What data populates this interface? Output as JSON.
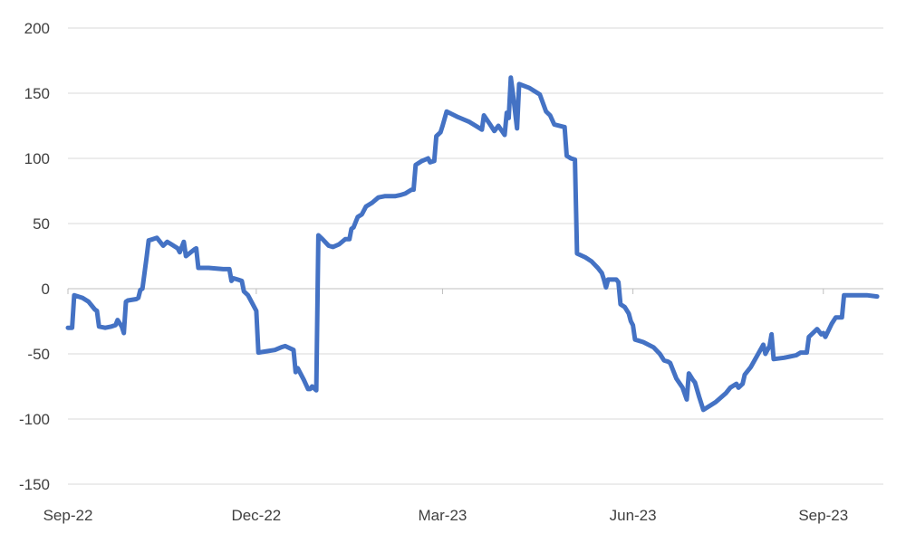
{
  "chart_data": {
    "type": "line",
    "title": "",
    "xlabel": "",
    "ylabel": "",
    "ylim": [
      -150,
      200
    ],
    "y_ticks": [
      200,
      150,
      100,
      50,
      0,
      -50,
      -100,
      -150
    ],
    "y_tick_labels": [
      "200",
      "150",
      "100",
      "50",
      "0",
      "-50",
      "-100",
      "-150"
    ],
    "x_range": [
      "2022-09-01",
      "2023-09-30"
    ],
    "x_ticks": [
      {
        "date": "2022-09-01",
        "label": "Sep-22"
      },
      {
        "date": "2022-12-01",
        "label": "Dec-22"
      },
      {
        "date": "2023-03-01",
        "label": "Mar-23"
      },
      {
        "date": "2023-06-01",
        "label": "Jun-23"
      },
      {
        "date": "2023-09-01",
        "label": "Sep-23"
      }
    ],
    "grid": true,
    "legend": "none",
    "line_color": "#4472C4",
    "series": [
      {
        "points": [
          [
            "2022-09-01",
            -30
          ],
          [
            "2022-09-03",
            -30
          ],
          [
            "2022-09-04",
            -5
          ],
          [
            "2022-09-08",
            -7
          ],
          [
            "2022-09-11",
            -10
          ],
          [
            "2022-09-14",
            -16
          ],
          [
            "2022-09-15",
            -17
          ],
          [
            "2022-09-16",
            -29
          ],
          [
            "2022-09-19",
            -30
          ],
          [
            "2022-09-22",
            -29
          ],
          [
            "2022-09-24",
            -28
          ],
          [
            "2022-09-25",
            -24
          ],
          [
            "2022-09-27",
            -29
          ],
          [
            "2022-09-28",
            -34
          ],
          [
            "2022-09-29",
            -10
          ],
          [
            "2022-09-30",
            -9
          ],
          [
            "2022-10-04",
            -8
          ],
          [
            "2022-10-05",
            -7
          ],
          [
            "2022-10-06",
            -1
          ],
          [
            "2022-10-07",
            0
          ],
          [
            "2022-10-09",
            24
          ],
          [
            "2022-10-10",
            37
          ],
          [
            "2022-10-12",
            38
          ],
          [
            "2022-10-14",
            39
          ],
          [
            "2022-10-17",
            33
          ],
          [
            "2022-10-19",
            36
          ],
          [
            "2022-10-21",
            34
          ],
          [
            "2022-10-24",
            31
          ],
          [
            "2022-10-25",
            28
          ],
          [
            "2022-10-27",
            36
          ],
          [
            "2022-10-28",
            25
          ],
          [
            "2022-11-01",
            30
          ],
          [
            "2022-11-02",
            31
          ],
          [
            "2022-11-03",
            16
          ],
          [
            "2022-11-08",
            16
          ],
          [
            "2022-11-15",
            15
          ],
          [
            "2022-11-18",
            15
          ],
          [
            "2022-11-19",
            6
          ],
          [
            "2022-11-20",
            8
          ],
          [
            "2022-11-22",
            7
          ],
          [
            "2022-11-24",
            6
          ],
          [
            "2022-11-25",
            -2
          ],
          [
            "2022-11-27",
            -5
          ],
          [
            "2022-11-29",
            -11
          ],
          [
            "2022-12-01",
            -17
          ],
          [
            "2022-12-02",
            -49
          ],
          [
            "2022-12-06",
            -48
          ],
          [
            "2022-12-10",
            -47
          ],
          [
            "2022-12-13",
            -45
          ],
          [
            "2022-12-15",
            -44
          ],
          [
            "2022-12-19",
            -47
          ],
          [
            "2022-12-20",
            -64
          ],
          [
            "2022-12-21",
            -61
          ],
          [
            "2022-12-24",
            -70
          ],
          [
            "2022-12-26",
            -77
          ],
          [
            "2022-12-27",
            -77
          ],
          [
            "2022-12-28",
            -75
          ],
          [
            "2022-12-30",
            -78
          ],
          [
            "2022-12-31",
            41
          ],
          [
            "2023-01-02",
            38
          ],
          [
            "2023-01-05",
            33
          ],
          [
            "2023-01-07",
            32
          ],
          [
            "2023-01-10",
            34
          ],
          [
            "2023-01-13",
            38
          ],
          [
            "2023-01-15",
            38
          ],
          [
            "2023-01-16",
            46
          ],
          [
            "2023-01-17",
            47
          ],
          [
            "2023-01-19",
            55
          ],
          [
            "2023-01-21",
            57
          ],
          [
            "2023-01-23",
            63
          ],
          [
            "2023-01-26",
            66
          ],
          [
            "2023-01-29",
            70
          ],
          [
            "2023-02-01",
            71
          ],
          [
            "2023-02-06",
            71
          ],
          [
            "2023-02-09",
            72
          ],
          [
            "2023-02-11",
            73
          ],
          [
            "2023-02-14",
            76
          ],
          [
            "2023-02-15",
            76
          ],
          [
            "2023-02-16",
            95
          ],
          [
            "2023-02-19",
            98
          ],
          [
            "2023-02-22",
            100
          ],
          [
            "2023-02-23",
            97
          ],
          [
            "2023-02-25",
            98
          ],
          [
            "2023-02-26",
            117
          ],
          [
            "2023-02-28",
            120
          ],
          [
            "2023-03-01",
            125
          ],
          [
            "2023-03-03",
            136
          ],
          [
            "2023-03-08",
            132
          ],
          [
            "2023-03-14",
            128
          ],
          [
            "2023-03-18",
            124
          ],
          [
            "2023-03-20",
            122
          ],
          [
            "2023-03-21",
            133
          ],
          [
            "2023-03-24",
            126
          ],
          [
            "2023-03-26",
            121
          ],
          [
            "2023-03-28",
            125
          ],
          [
            "2023-03-31",
            118
          ],
          [
            "2023-04-01",
            135
          ],
          [
            "2023-04-02",
            131
          ],
          [
            "2023-04-03",
            162
          ],
          [
            "2023-04-04",
            150
          ],
          [
            "2023-04-06",
            123
          ],
          [
            "2023-04-07",
            157
          ],
          [
            "2023-04-12",
            154
          ],
          [
            "2023-04-17",
            149
          ],
          [
            "2023-04-20",
            136
          ],
          [
            "2023-04-22",
            133
          ],
          [
            "2023-04-24",
            126
          ],
          [
            "2023-04-29",
            124
          ],
          [
            "2023-04-30",
            102
          ],
          [
            "2023-05-02",
            100
          ],
          [
            "2023-05-04",
            99
          ],
          [
            "2023-05-05",
            27
          ],
          [
            "2023-05-09",
            24
          ],
          [
            "2023-05-12",
            21
          ],
          [
            "2023-05-15",
            16
          ],
          [
            "2023-05-17",
            12
          ],
          [
            "2023-05-18",
            7
          ],
          [
            "2023-05-19",
            1
          ],
          [
            "2023-05-20",
            7
          ],
          [
            "2023-05-24",
            7
          ],
          [
            "2023-05-25",
            5
          ],
          [
            "2023-05-26",
            -12
          ],
          [
            "2023-05-28",
            -14
          ],
          [
            "2023-05-30",
            -19
          ],
          [
            "2023-05-31",
            -25
          ],
          [
            "2023-06-01",
            -28
          ],
          [
            "2023-06-02",
            -39
          ],
          [
            "2023-06-06",
            -41
          ],
          [
            "2023-06-11",
            -45
          ],
          [
            "2023-06-14",
            -50
          ],
          [
            "2023-06-16",
            -55
          ],
          [
            "2023-06-18",
            -56
          ],
          [
            "2023-06-19",
            -57
          ],
          [
            "2023-06-22",
            -69
          ],
          [
            "2023-06-25",
            -76
          ],
          [
            "2023-06-27",
            -85
          ],
          [
            "2023-06-28",
            -65
          ],
          [
            "2023-06-30",
            -70
          ],
          [
            "2023-07-01",
            -72
          ],
          [
            "2023-07-03",
            -83
          ],
          [
            "2023-07-05",
            -93
          ],
          [
            "2023-07-08",
            -90
          ],
          [
            "2023-07-11",
            -87
          ],
          [
            "2023-07-16",
            -80
          ],
          [
            "2023-07-18",
            -76
          ],
          [
            "2023-07-21",
            -73
          ],
          [
            "2023-07-22",
            -76
          ],
          [
            "2023-07-24",
            -73
          ],
          [
            "2023-07-25",
            -66
          ],
          [
            "2023-07-28",
            -60
          ],
          [
            "2023-08-03",
            -43
          ],
          [
            "2023-08-04",
            -50
          ],
          [
            "2023-08-06",
            -44
          ],
          [
            "2023-08-07",
            -35
          ],
          [
            "2023-08-08",
            -54
          ],
          [
            "2023-08-13",
            -53
          ],
          [
            "2023-08-16",
            -52
          ],
          [
            "2023-08-19",
            -51
          ],
          [
            "2023-08-21",
            -49
          ],
          [
            "2023-08-24",
            -49
          ],
          [
            "2023-08-25",
            -37
          ],
          [
            "2023-08-27",
            -34
          ],
          [
            "2023-08-29",
            -31
          ],
          [
            "2023-08-31",
            -35
          ],
          [
            "2023-09-01",
            -34
          ],
          [
            "2023-09-02",
            -37
          ],
          [
            "2023-09-05",
            -27
          ],
          [
            "2023-09-07",
            -22
          ],
          [
            "2023-09-10",
            -22
          ],
          [
            "2023-09-11",
            -5
          ],
          [
            "2023-09-15",
            -5
          ],
          [
            "2023-09-22",
            -5
          ],
          [
            "2023-09-27",
            -6
          ]
        ]
      }
    ]
  }
}
